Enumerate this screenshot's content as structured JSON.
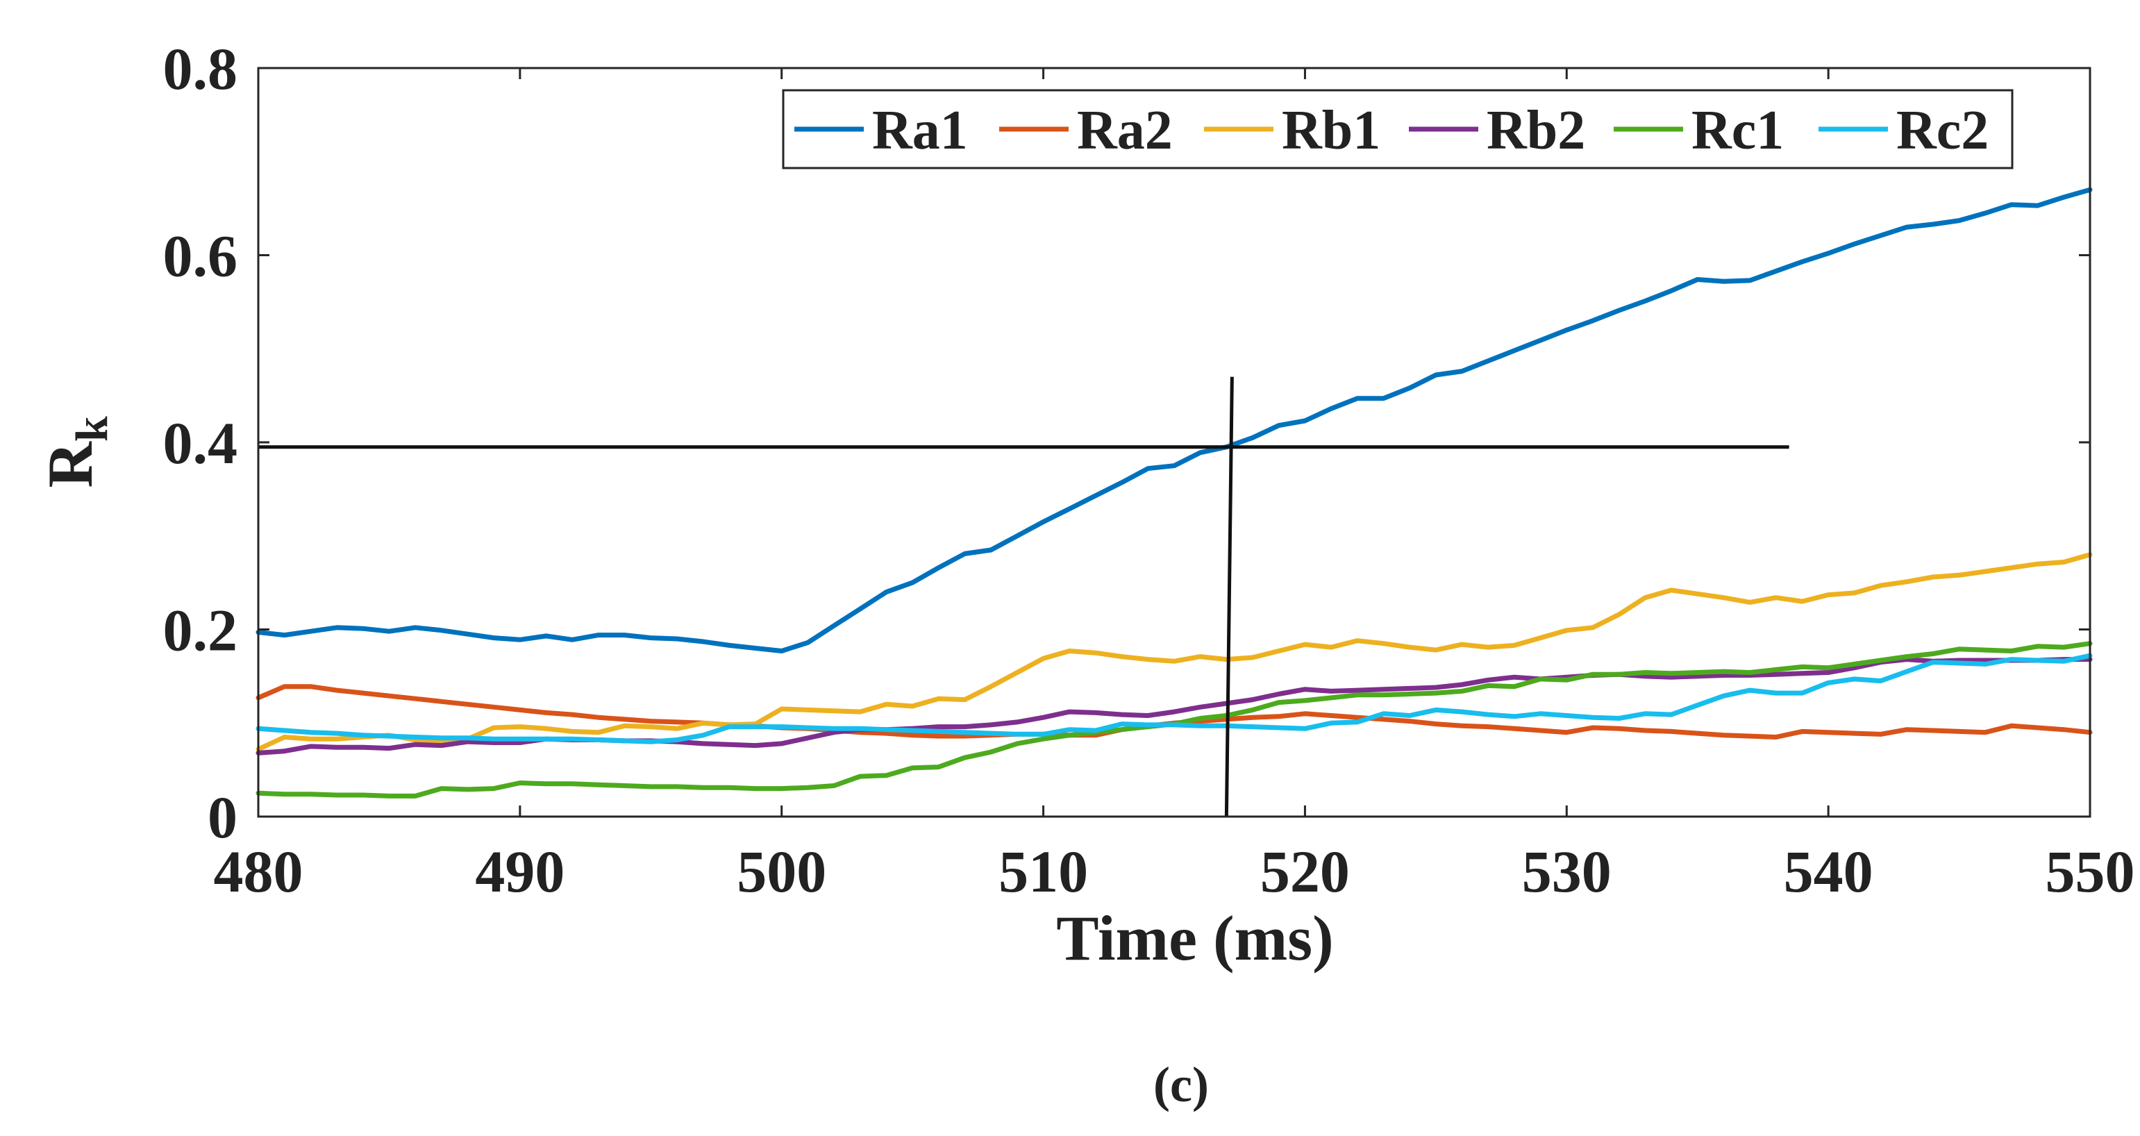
{
  "chart_data": {
    "type": "line",
    "title": "",
    "xlabel": "Time (ms)",
    "ylabel_main": "R",
    "ylabel_sub": "k",
    "xlim": [
      480,
      550
    ],
    "ylim": [
      0,
      0.8
    ],
    "xticks": [
      480,
      490,
      500,
      510,
      520,
      530,
      540,
      550
    ],
    "xtick_labels": [
      "480",
      "490",
      "500",
      "510",
      "520",
      "530",
      "540",
      "550"
    ],
    "yticks": [
      0,
      0.2,
      0.4,
      0.6,
      0.8
    ],
    "ytick_labels": [
      "0",
      "0.2",
      "0.4",
      "0.6",
      "0.8"
    ],
    "grid": false,
    "legend_position": "top-right",
    "caption": "(c)",
    "threshold": {
      "horizontal": {
        "y": 0.395,
        "x_from": 480,
        "x_to": 538.5
      },
      "vertical": {
        "x": 517,
        "y_from": 0,
        "y_to": 0.47
      }
    },
    "series": [
      {
        "name": "Ra1",
        "color": "#0072BD",
        "x": [
          480,
          481,
          482,
          483,
          484,
          485,
          486,
          487,
          488,
          489,
          490,
          491,
          492,
          493,
          494,
          495,
          496,
          497,
          498,
          499,
          500,
          501,
          502,
          503,
          504,
          505,
          506,
          507,
          508,
          509,
          510,
          511,
          512,
          513,
          514,
          515,
          516,
          517,
          518,
          519,
          520,
          521,
          522,
          523,
          524,
          525,
          526,
          527,
          528,
          529,
          530,
          531,
          532,
          533,
          534,
          535,
          536,
          537,
          538,
          539,
          540,
          541,
          542,
          543,
          544,
          545,
          546,
          547,
          548,
          549,
          550
        ],
        "values": [
          0.197,
          0.194,
          0.198,
          0.202,
          0.201,
          0.198,
          0.202,
          0.199,
          0.195,
          0.191,
          0.189,
          0.193,
          0.189,
          0.194,
          0.194,
          0.191,
          0.19,
          0.187,
          0.183,
          0.18,
          0.177,
          0.186,
          0.204,
          0.222,
          0.24,
          0.25,
          0.266,
          0.281,
          0.285,
          0.3,
          0.315,
          0.329,
          0.343,
          0.357,
          0.372,
          0.375,
          0.389,
          0.395,
          0.405,
          0.418,
          0.423,
          0.436,
          0.447,
          0.447,
          0.458,
          0.472,
          0.476,
          0.487,
          0.498,
          0.509,
          0.52,
          0.53,
          0.541,
          0.551,
          0.562,
          0.574,
          0.572,
          0.573,
          0.583,
          0.593,
          0.602,
          0.612,
          0.621,
          0.63,
          0.633,
          0.637,
          0.645,
          0.654,
          0.653,
          0.662,
          0.67
        ]
      },
      {
        "name": "Ra2",
        "color": "#D95319",
        "x": [
          480,
          481,
          482,
          483,
          484,
          485,
          486,
          487,
          488,
          489,
          490,
          491,
          492,
          493,
          494,
          495,
          496,
          497,
          498,
          499,
          500,
          501,
          502,
          503,
          504,
          505,
          506,
          507,
          508,
          509,
          510,
          511,
          512,
          513,
          514,
          515,
          516,
          517,
          518,
          519,
          520,
          521,
          522,
          523,
          524,
          525,
          526,
          527,
          528,
          529,
          530,
          531,
          532,
          533,
          534,
          535,
          536,
          537,
          538,
          539,
          540,
          541,
          542,
          543,
          544,
          545,
          546,
          547,
          548,
          549,
          550
        ],
        "values": [
          0.127,
          0.139,
          0.139,
          0.135,
          0.132,
          0.129,
          0.126,
          0.123,
          0.12,
          0.117,
          0.114,
          0.111,
          0.109,
          0.106,
          0.104,
          0.102,
          0.101,
          0.1,
          0.098,
          0.097,
          0.095,
          0.094,
          0.092,
          0.09,
          0.089,
          0.087,
          0.086,
          0.086,
          0.087,
          0.088,
          0.088,
          0.087,
          0.087,
          0.093,
          0.097,
          0.1,
          0.102,
          0.104,
          0.106,
          0.107,
          0.11,
          0.108,
          0.106,
          0.104,
          0.102,
          0.099,
          0.097,
          0.096,
          0.094,
          0.092,
          0.09,
          0.095,
          0.094,
          0.092,
          0.091,
          0.089,
          0.087,
          0.086,
          0.085,
          0.091,
          0.09,
          0.089,
          0.088,
          0.093,
          0.092,
          0.091,
          0.09,
          0.097,
          0.095,
          0.093,
          0.09
        ]
      },
      {
        "name": "Rb1",
        "color": "#EDB120",
        "x": [
          480,
          481,
          482,
          483,
          484,
          485,
          486,
          487,
          488,
          489,
          490,
          491,
          492,
          493,
          494,
          495,
          496,
          497,
          498,
          499,
          500,
          501,
          502,
          503,
          504,
          505,
          506,
          507,
          508,
          509,
          510,
          511,
          512,
          513,
          514,
          515,
          516,
          517,
          518,
          519,
          520,
          521,
          522,
          523,
          524,
          525,
          526,
          527,
          528,
          529,
          530,
          531,
          532,
          533,
          534,
          535,
          536,
          537,
          538,
          539,
          540,
          541,
          542,
          543,
          544,
          545,
          546,
          547,
          548,
          549,
          550
        ],
        "values": [
          0.072,
          0.085,
          0.083,
          0.083,
          0.085,
          0.087,
          0.082,
          0.081,
          0.083,
          0.095,
          0.096,
          0.094,
          0.091,
          0.09,
          0.097,
          0.096,
          0.094,
          0.1,
          0.098,
          0.099,
          0.115,
          0.114,
          0.113,
          0.112,
          0.12,
          0.118,
          0.126,
          0.125,
          0.139,
          0.154,
          0.169,
          0.177,
          0.175,
          0.171,
          0.168,
          0.166,
          0.171,
          0.168,
          0.17,
          0.177,
          0.184,
          0.181,
          0.188,
          0.185,
          0.181,
          0.178,
          0.184,
          0.181,
          0.183,
          0.191,
          0.199,
          0.202,
          0.216,
          0.234,
          0.242,
          0.238,
          0.234,
          0.229,
          0.234,
          0.23,
          0.237,
          0.239,
          0.247,
          0.251,
          0.256,
          0.258,
          0.262,
          0.266,
          0.27,
          0.272,
          0.28
        ]
      },
      {
        "name": "Rb2",
        "color": "#7E2F8E",
        "x": [
          480,
          481,
          482,
          483,
          484,
          485,
          486,
          487,
          488,
          489,
          490,
          491,
          492,
          493,
          494,
          495,
          496,
          497,
          498,
          499,
          500,
          501,
          502,
          503,
          504,
          505,
          506,
          507,
          508,
          509,
          510,
          511,
          512,
          513,
          514,
          515,
          516,
          517,
          518,
          519,
          520,
          521,
          522,
          523,
          524,
          525,
          526,
          527,
          528,
          529,
          530,
          531,
          532,
          533,
          534,
          535,
          536,
          537,
          538,
          539,
          540,
          541,
          542,
          543,
          544,
          545,
          546,
          547,
          548,
          549,
          550
        ],
        "values": [
          0.068,
          0.07,
          0.075,
          0.074,
          0.074,
          0.073,
          0.077,
          0.076,
          0.08,
          0.079,
          0.079,
          0.083,
          0.082,
          0.082,
          0.081,
          0.081,
          0.08,
          0.078,
          0.077,
          0.076,
          0.078,
          0.084,
          0.09,
          0.093,
          0.093,
          0.094,
          0.096,
          0.096,
          0.098,
          0.101,
          0.106,
          0.112,
          0.111,
          0.109,
          0.108,
          0.112,
          0.117,
          0.121,
          0.125,
          0.131,
          0.136,
          0.134,
          0.135,
          0.136,
          0.137,
          0.138,
          0.141,
          0.146,
          0.149,
          0.147,
          0.149,
          0.151,
          0.152,
          0.15,
          0.149,
          0.15,
          0.151,
          0.151,
          0.152,
          0.153,
          0.154,
          0.159,
          0.165,
          0.168,
          0.166,
          0.167,
          0.167,
          0.167,
          0.167,
          0.168,
          0.168
        ]
      },
      {
        "name": "Rc1",
        "color": "#4DAA1E",
        "x": [
          480,
          481,
          482,
          483,
          484,
          485,
          486,
          487,
          488,
          489,
          490,
          491,
          492,
          493,
          494,
          495,
          496,
          497,
          498,
          499,
          500,
          501,
          502,
          503,
          504,
          505,
          506,
          507,
          508,
          509,
          510,
          511,
          512,
          513,
          514,
          515,
          516,
          517,
          518,
          519,
          520,
          521,
          522,
          523,
          524,
          525,
          526,
          527,
          528,
          529,
          530,
          531,
          532,
          533,
          534,
          535,
          536,
          537,
          538,
          539,
          540,
          541,
          542,
          543,
          544,
          545,
          546,
          547,
          548,
          549,
          550
        ],
        "values": [
          0.025,
          0.024,
          0.024,
          0.023,
          0.023,
          0.022,
          0.022,
          0.03,
          0.029,
          0.03,
          0.036,
          0.035,
          0.035,
          0.034,
          0.033,
          0.032,
          0.032,
          0.031,
          0.031,
          0.03,
          0.03,
          0.031,
          0.033,
          0.043,
          0.044,
          0.052,
          0.053,
          0.063,
          0.069,
          0.078,
          0.083,
          0.087,
          0.09,
          0.093,
          0.096,
          0.099,
          0.105,
          0.108,
          0.114,
          0.122,
          0.124,
          0.127,
          0.13,
          0.13,
          0.131,
          0.132,
          0.134,
          0.14,
          0.139,
          0.147,
          0.146,
          0.152,
          0.152,
          0.154,
          0.153,
          0.154,
          0.155,
          0.154,
          0.157,
          0.16,
          0.159,
          0.163,
          0.167,
          0.171,
          0.174,
          0.179,
          0.178,
          0.177,
          0.182,
          0.181,
          0.185
        ]
      },
      {
        "name": "Rc2",
        "color": "#18BDEE",
        "x": [
          480,
          481,
          482,
          483,
          484,
          485,
          486,
          487,
          488,
          489,
          490,
          491,
          492,
          493,
          494,
          495,
          496,
          497,
          498,
          499,
          500,
          501,
          502,
          503,
          504,
          505,
          506,
          507,
          508,
          509,
          510,
          511,
          512,
          513,
          514,
          515,
          516,
          517,
          518,
          519,
          520,
          521,
          522,
          523,
          524,
          525,
          526,
          527,
          528,
          529,
          530,
          531,
          532,
          533,
          534,
          535,
          536,
          537,
          538,
          539,
          540,
          541,
          542,
          543,
          544,
          545,
          546,
          547,
          548,
          549,
          550
        ],
        "values": [
          0.094,
          0.092,
          0.09,
          0.089,
          0.087,
          0.086,
          0.085,
          0.084,
          0.084,
          0.083,
          0.083,
          0.083,
          0.083,
          0.082,
          0.081,
          0.08,
          0.082,
          0.087,
          0.096,
          0.096,
          0.096,
          0.095,
          0.094,
          0.094,
          0.093,
          0.092,
          0.091,
          0.09,
          0.089,
          0.088,
          0.088,
          0.093,
          0.092,
          0.099,
          0.098,
          0.098,
          0.097,
          0.097,
          0.096,
          0.095,
          0.094,
          0.1,
          0.101,
          0.11,
          0.108,
          0.114,
          0.112,
          0.109,
          0.107,
          0.11,
          0.108,
          0.106,
          0.105,
          0.11,
          0.109,
          0.119,
          0.129,
          0.135,
          0.132,
          0.132,
          0.143,
          0.147,
          0.145,
          0.155,
          0.165,
          0.164,
          0.163,
          0.168,
          0.167,
          0.166,
          0.172
        ]
      }
    ]
  }
}
